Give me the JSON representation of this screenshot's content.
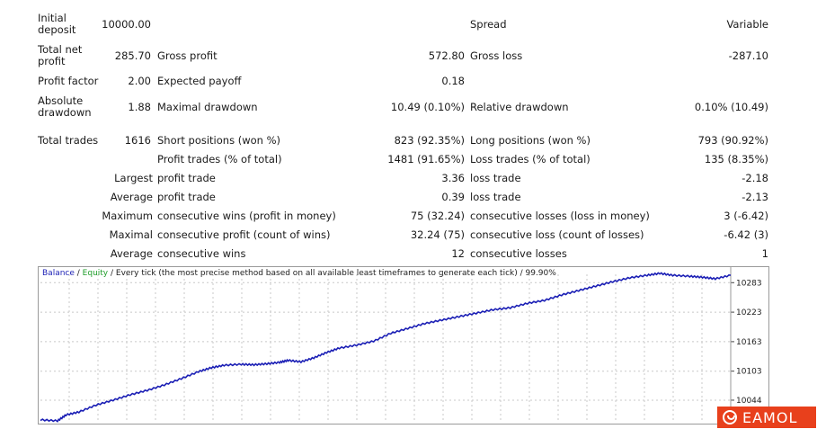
{
  "stats": {
    "initial_deposit": {
      "label": "Initial deposit",
      "value": "10000.00"
    },
    "spread": {
      "label": "Spread",
      "value": "Variable"
    },
    "total_net_profit": {
      "label": "Total net profit",
      "value": "285.70"
    },
    "gross_profit": {
      "label": "Gross profit",
      "value": "572.80"
    },
    "gross_loss": {
      "label": "Gross loss",
      "value": "-287.10"
    },
    "profit_factor": {
      "label": "Profit factor",
      "value": "2.00"
    },
    "expected_payoff": {
      "label": "Expected payoff",
      "value": "0.18"
    },
    "absolute_drawdown": {
      "label": "Absolute drawdown",
      "value": "1.88"
    },
    "maximal_drawdown": {
      "label": "Maximal drawdown",
      "value": "10.49 (0.10%)"
    },
    "relative_drawdown": {
      "label": "Relative drawdown",
      "value": "0.10% (10.49)"
    },
    "total_trades": {
      "label": "Total trades",
      "value": "1616"
    },
    "short_positions": {
      "label": "Short positions (won %)",
      "value": "823 (92.35%)"
    },
    "long_positions": {
      "label": "Long positions (won %)",
      "value": "793 (90.92%)"
    },
    "profit_trades": {
      "label": "Profit trades (% of total)",
      "value": "1481 (91.65%)"
    },
    "loss_trades": {
      "label": "Loss trades (% of total)",
      "value": "135 (8.35%)"
    },
    "largest": {
      "label": "Largest",
      "profit_label": "profit trade",
      "profit_value": "3.36",
      "loss_label": "loss trade",
      "loss_value": "-2.18"
    },
    "average": {
      "label": "Average",
      "profit_label": "profit trade",
      "profit_value": "0.39",
      "loss_label": "loss trade",
      "loss_value": "-2.13"
    },
    "maximum": {
      "label": "Maximum",
      "wins_label": "consecutive wins (profit in money)",
      "wins_value": "75 (32.24)",
      "losses_label": "consecutive losses (loss in money)",
      "losses_value": "3 (-6.42)"
    },
    "maximal": {
      "label": "Maximal",
      "wins_label": "consecutive profit (count of wins)",
      "wins_value": "32.24 (75)",
      "losses_label": "consecutive loss (count of losses)",
      "losses_value": "-6.42 (3)"
    },
    "average_consec": {
      "label": "Average",
      "wins_label": "consecutive wins",
      "wins_value": "12",
      "losses_label": "consecutive losses",
      "losses_value": "1"
    }
  },
  "chart_title": {
    "balance": "Balance",
    "sep1": " / ",
    "equity": "Equity",
    "rest": " / Every tick (the most precise method based on all available least timeframes to generate each tick) / 99.90%"
  },
  "colors": {
    "balance": "#1b1fb5",
    "equity": "#1f9d2a",
    "logo_bg": "#e8401c"
  },
  "logo": {
    "text": "EAMOL"
  },
  "chart_data": {
    "type": "line",
    "title": "Balance / Equity / Every tick (the most precise method based on all available least timeframes to generate each tick) / 99.90%",
    "xlabel": "",
    "ylabel": "",
    "y_ticks": [
      "10283",
      "10223",
      "10163",
      "10103",
      "10044"
    ],
    "ylim": [
      10000,
      10300
    ],
    "xlim": [
      0,
      1616
    ],
    "grid": true,
    "series": [
      {
        "name": "Balance",
        "x": [
          0,
          40,
          60,
          90,
          130,
          170,
          210,
          250,
          290,
          330,
          370,
          400,
          430,
          470,
          500,
          530,
          560,
          580,
          610,
          640,
          670,
          700,
          740,
          780,
          820,
          860,
          900,
          940,
          980,
          1020,
          1060,
          1100,
          1140,
          1180,
          1220,
          1260,
          1300,
          1340,
          1380,
          1420,
          1450,
          1480,
          1520,
          1550,
          1580,
          1616
        ],
        "y": [
          10004,
          10002,
          10014,
          10020,
          10034,
          10044,
          10055,
          10064,
          10075,
          10088,
          10102,
          10110,
          10115,
          10117,
          10116,
          10118,
          10121,
          10125,
          10122,
          10130,
          10141,
          10150,
          10156,
          10164,
          10180,
          10190,
          10200,
          10207,
          10214,
          10221,
          10228,
          10232,
          10241,
          10247,
          10258,
          10267,
          10276,
          10285,
          10293,
          10298,
          10302,
          10298,
          10296,
          10294,
          10291,
          10298
        ]
      }
    ]
  }
}
